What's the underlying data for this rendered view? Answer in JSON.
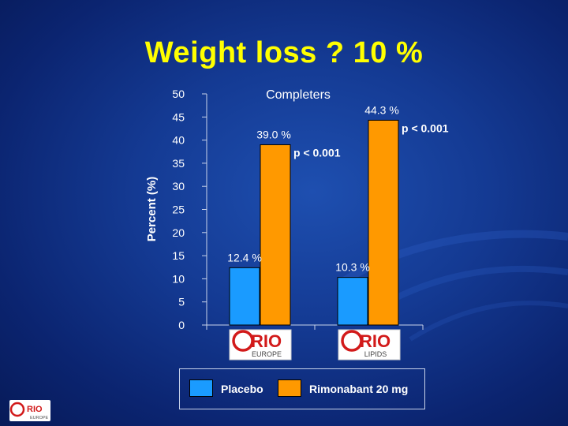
{
  "slide": {
    "title": "Weight loss ? 10 %"
  },
  "chart_data": {
    "type": "bar",
    "title": "Completers",
    "ylabel": "Percent (%)",
    "xlabel": "",
    "ylim": [
      0,
      50
    ],
    "yticks": [
      0,
      5,
      10,
      15,
      20,
      25,
      30,
      35,
      40,
      45,
      50
    ],
    "categories": [
      "RIO EUROPE",
      "RIO LIPIDS"
    ],
    "series": [
      {
        "name": "Placebo",
        "color": "#1a9bff",
        "values": [
          12.4,
          10.3
        ],
        "labels": [
          "12.4 %",
          "10.3 %"
        ]
      },
      {
        "name": "Rimonabant 20 mg",
        "color": "#ff9900",
        "values": [
          39.0,
          44.3
        ],
        "labels": [
          "39.0 %",
          "44.3 %"
        ]
      }
    ],
    "annotations": [
      "p < 0.001",
      "p < 0.001"
    ],
    "legend_position": "bottom",
    "grid": false
  },
  "logos": {
    "category_logos": [
      {
        "brand": "RIO",
        "sub": "EUROPE"
      },
      {
        "brand": "RIO",
        "sub": "LIPIDS"
      }
    ],
    "corner": {
      "brand": "RIO",
      "sub": "EUROPE"
    }
  }
}
